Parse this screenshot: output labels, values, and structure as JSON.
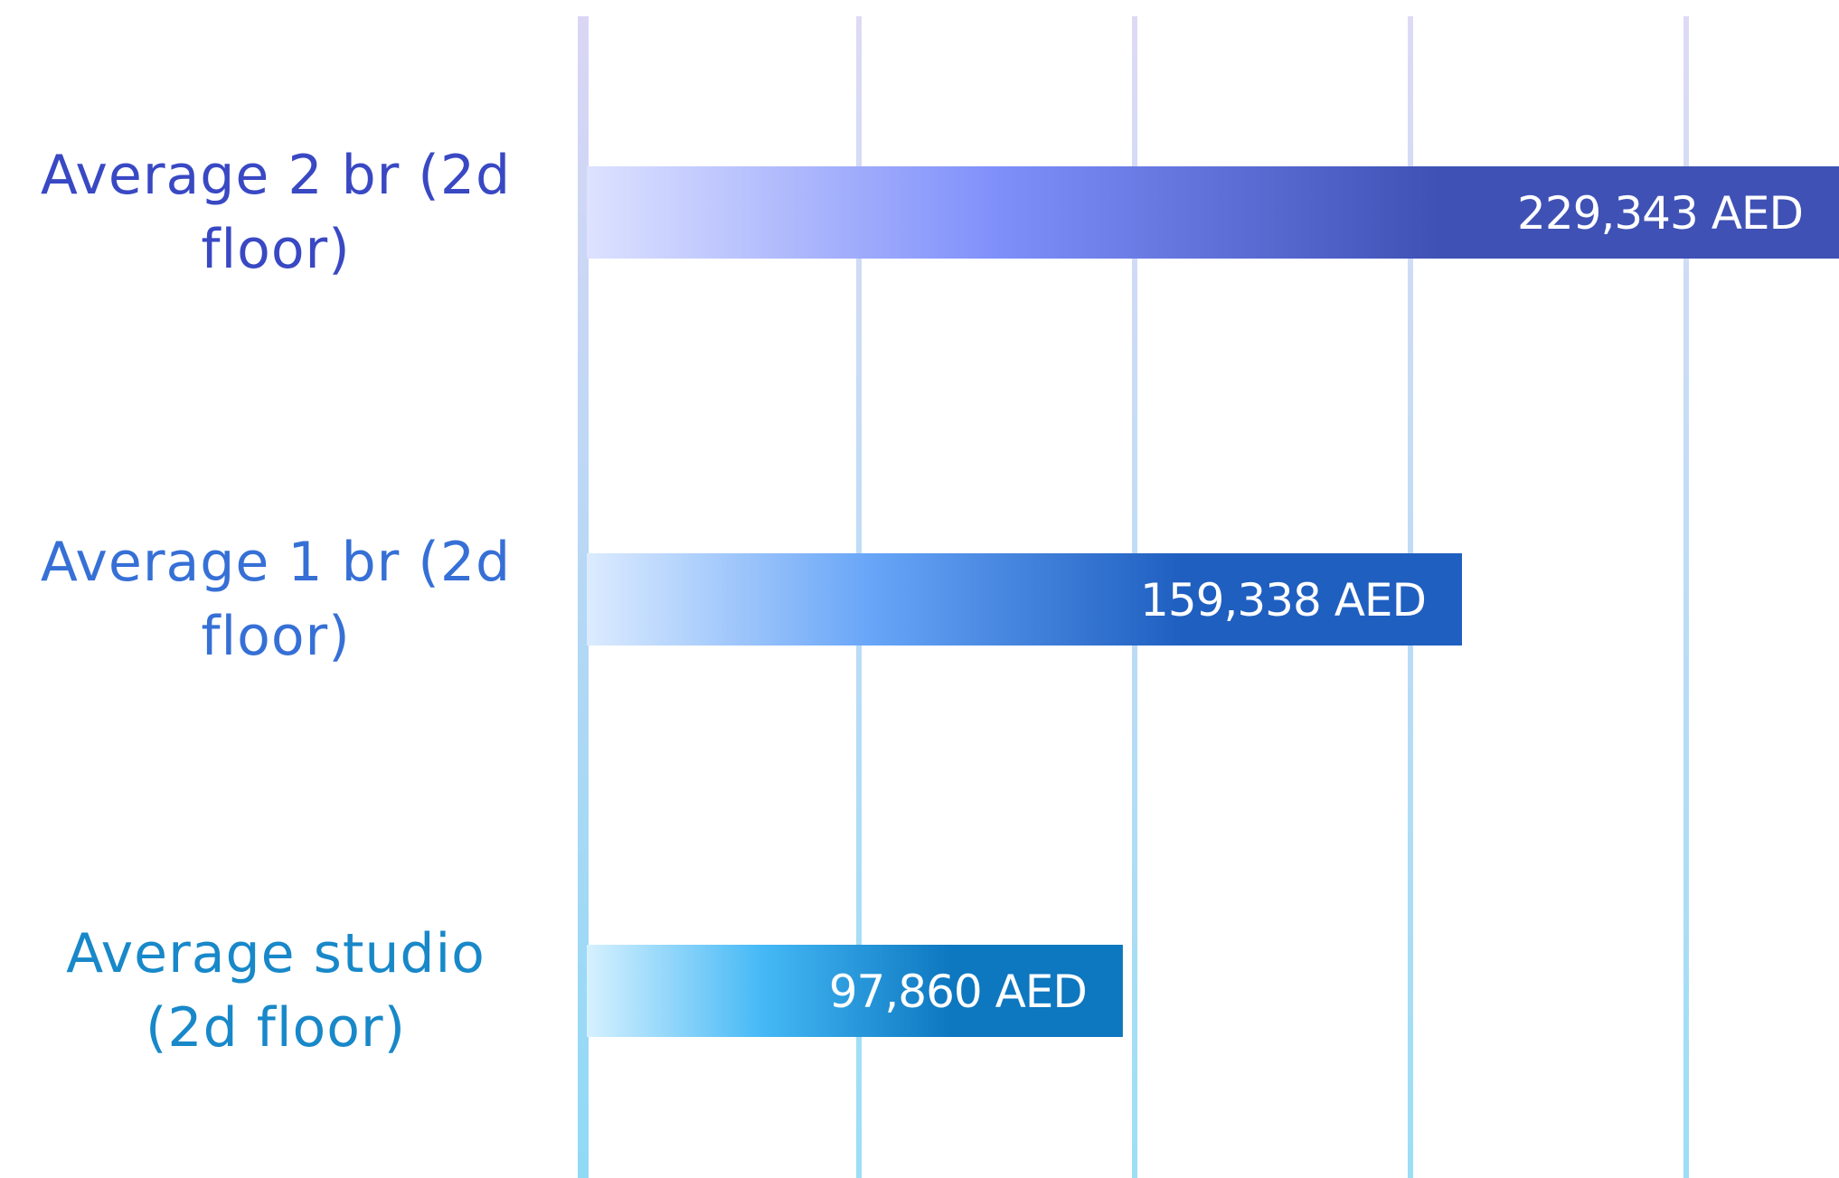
{
  "chart_data": {
    "type": "bar",
    "orientation": "horizontal",
    "categories": [
      "Average 2 br (2d floor)",
      "Average 1 br (2d floor)",
      "Average studio (2d floor)"
    ],
    "category_label_lines": [
      [
        "Average 2 br (2d",
        "floor)"
      ],
      [
        "Average 1 br (2d",
        "floor)"
      ],
      [
        "Average studio",
        "(2d floor)"
      ]
    ],
    "values": [
      229343,
      159338,
      97860
    ],
    "value_labels": [
      "229,343 AED",
      "159,338 AED",
      "97,860 AED"
    ],
    "unit": "AED",
    "xlim": [
      0,
      250000
    ],
    "grid": true,
    "legend": "none",
    "colors": {
      "bar_solid": [
        "#3f51b5",
        "#1f5fc0",
        "#0d77c0"
      ],
      "bar_mid": [
        "#7e8ffa",
        "#66a4f7",
        "#44b8f5"
      ],
      "bar_light": [
        "#dde2ff",
        "#dcebff",
        "#d6f1ff"
      ],
      "label_text": [
        "#3948c3",
        "#3670d6",
        "#1888c9"
      ],
      "gridline_top": "#d8d4f4",
      "gridline_bottom": "#8ad8f5"
    }
  }
}
